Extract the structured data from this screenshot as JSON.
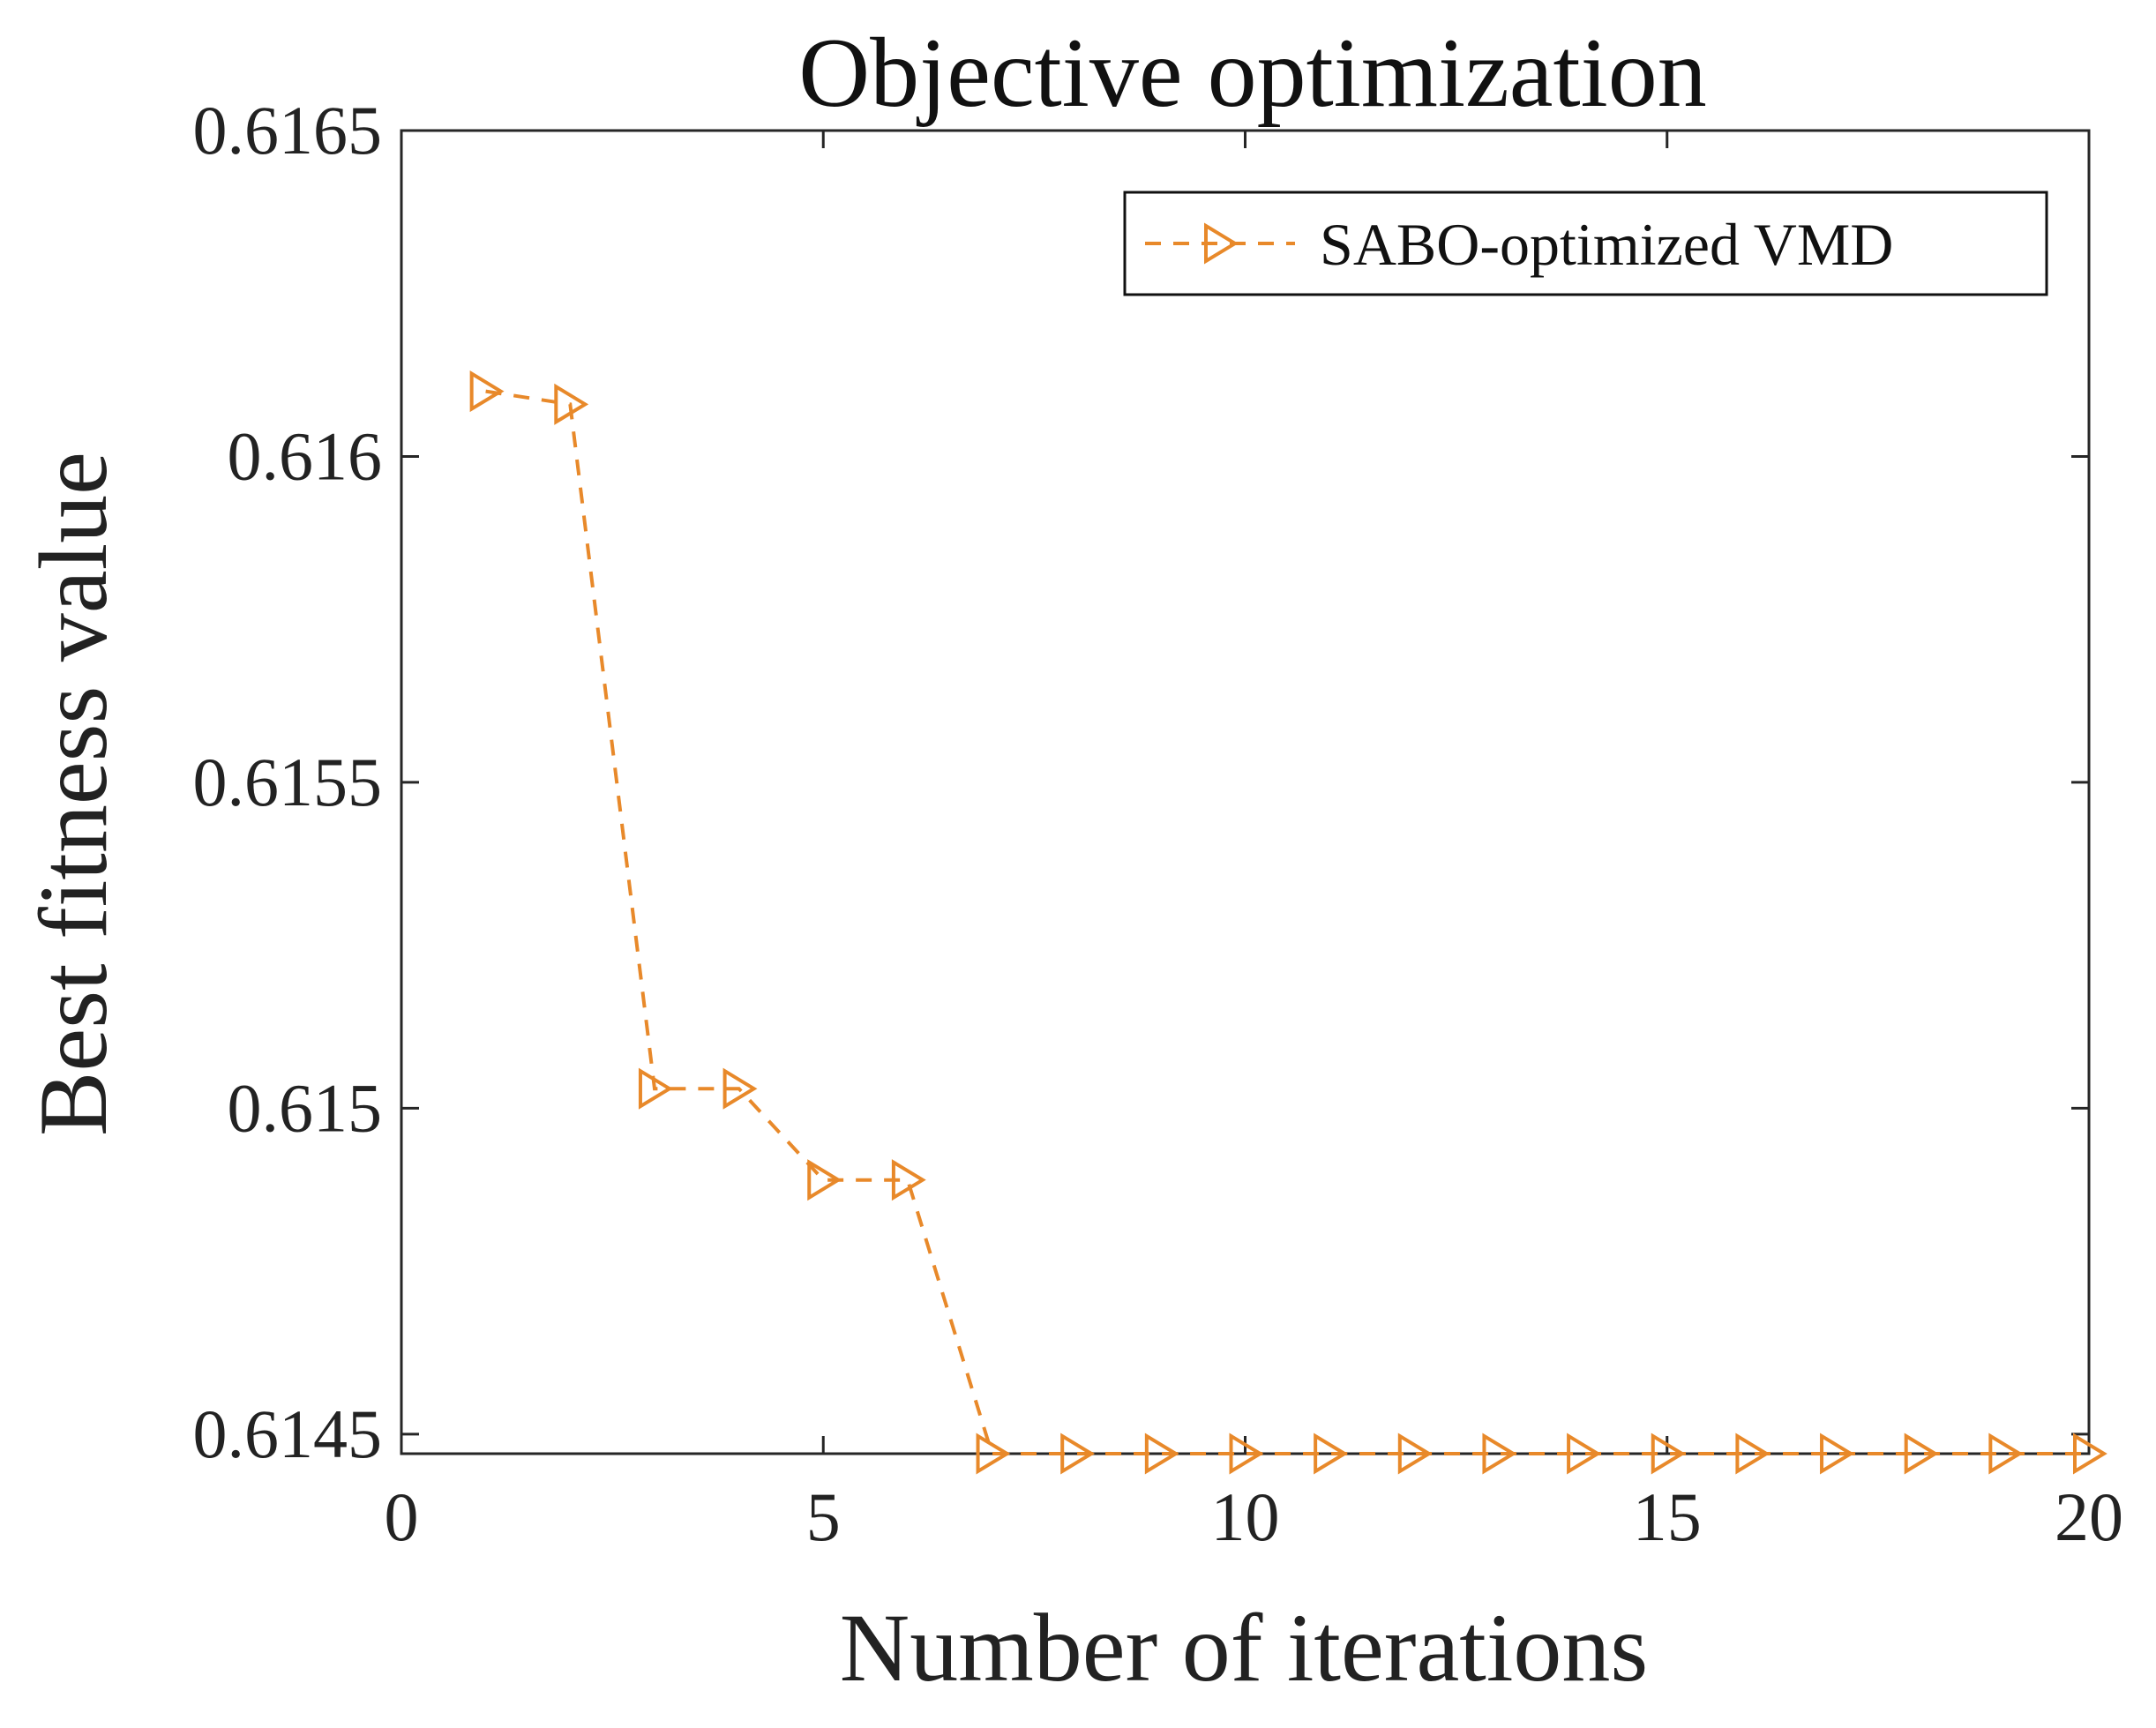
{
  "chart_data": {
    "type": "line",
    "title": "Objective optimization",
    "xlabel": "Number of iterations",
    "ylabel": "Best fitness value",
    "xlim": [
      0,
      20
    ],
    "ylim": [
      0.61447,
      0.6165
    ],
    "x_ticks": [
      0,
      5,
      10,
      15,
      20
    ],
    "x_tick_labels": [
      "0",
      "5",
      "10",
      "15",
      "20"
    ],
    "y_ticks": [
      0.6145,
      0.615,
      0.6155,
      0.616,
      0.6165
    ],
    "y_tick_labels": [
      "0.6145",
      "0.615",
      "0.6155",
      "0.616",
      "0.6165"
    ],
    "grid": false,
    "legend_position": "top-right",
    "series": [
      {
        "name": "SABO-optimized VMD",
        "color": "#E8892A",
        "line_style": "dashed",
        "marker": "right-triangle",
        "x": [
          1,
          2,
          3,
          4,
          5,
          6,
          7,
          8,
          9,
          10,
          11,
          12,
          13,
          14,
          15,
          16,
          17,
          18,
          19,
          20
        ],
        "values": [
          0.6161,
          0.61608,
          0.61503,
          0.61503,
          0.61489,
          0.61489,
          0.61447,
          0.61447,
          0.61447,
          0.61447,
          0.61447,
          0.61447,
          0.61447,
          0.61447,
          0.61447,
          0.61447,
          0.61447,
          0.61447,
          0.61447,
          0.61447
        ]
      }
    ]
  }
}
